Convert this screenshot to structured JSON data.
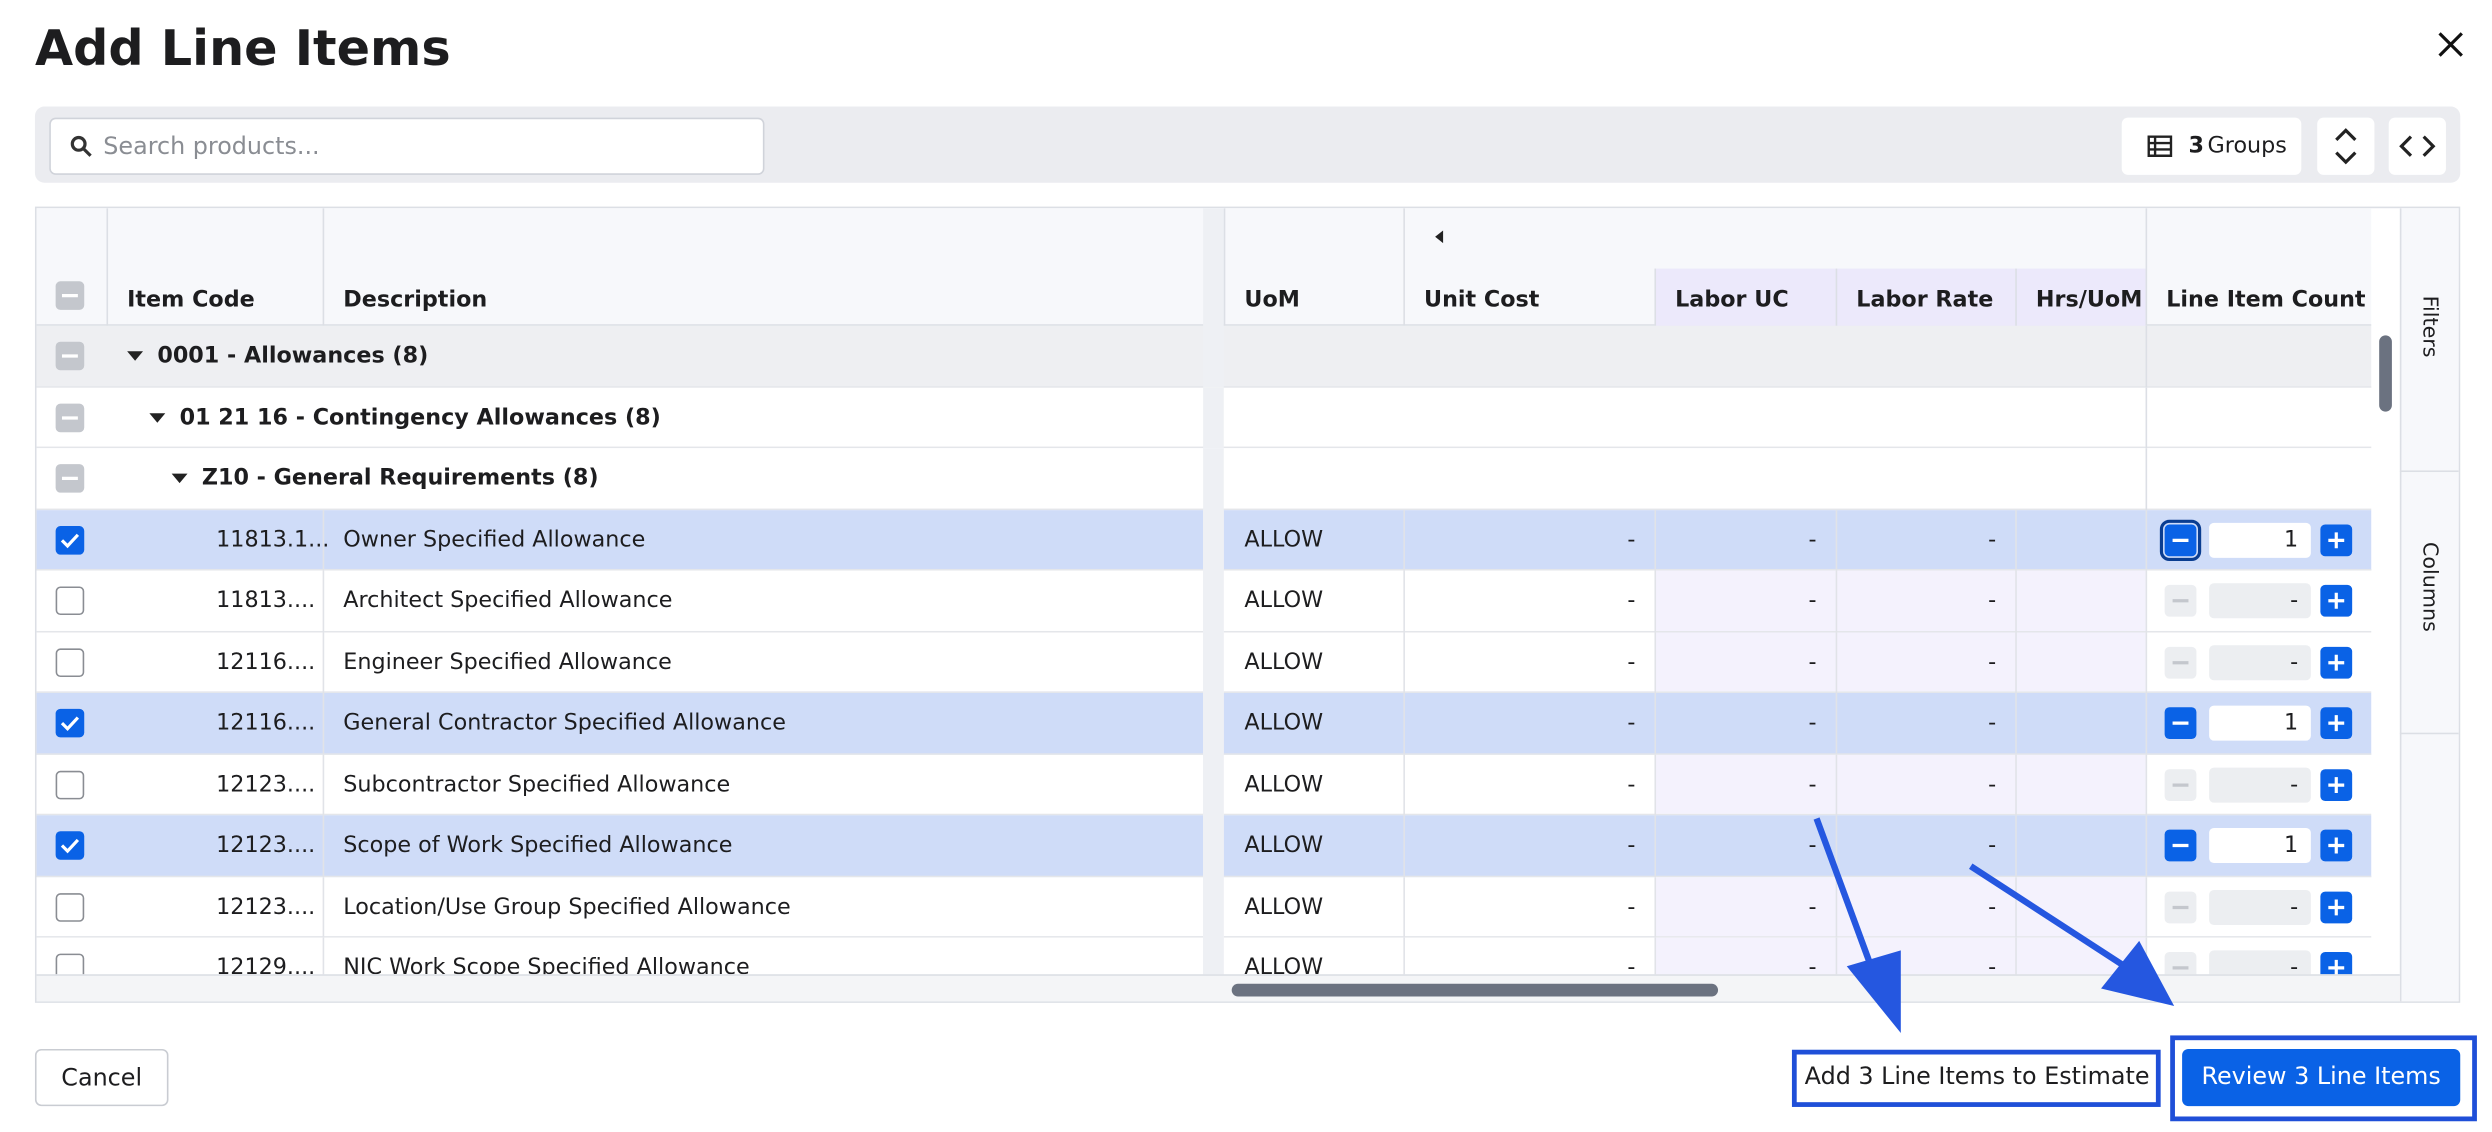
{
  "header": {
    "title": "Add Line Items"
  },
  "toolbar": {
    "search_placeholder": "Search products...",
    "groups_count": "3",
    "groups_label": "Groups"
  },
  "table": {
    "columns": [
      "Item Code",
      "Description",
      "UoM",
      "Unit Cost",
      "Labor UC",
      "Labor Rate",
      "Hrs/UoM",
      "Line Item Count"
    ],
    "groups": [
      {
        "label": "0001 - Allowances (8)",
        "level": 0
      },
      {
        "label": "01 21 16 - Contingency Allowances (8)",
        "level": 1
      },
      {
        "label": "Z10 - General Requirements (8)",
        "level": 2
      }
    ],
    "rows": [
      {
        "code": "11813.1...",
        "description": "Owner Specified Allowance",
        "uom": "ALLOW",
        "unit_cost": "-",
        "labor_uc": "-",
        "labor_rate": "-",
        "count": "1",
        "checked": true
      },
      {
        "code": "11813....",
        "description": "Architect Specified Allowance",
        "uom": "ALLOW",
        "unit_cost": "-",
        "labor_uc": "-",
        "labor_rate": "-",
        "count": "-",
        "checked": false
      },
      {
        "code": "12116....",
        "description": "Engineer Specified Allowance",
        "uom": "ALLOW",
        "unit_cost": "-",
        "labor_uc": "-",
        "labor_rate": "-",
        "count": "-",
        "checked": false
      },
      {
        "code": "12116....",
        "description": "General Contractor Specified Allowance",
        "uom": "ALLOW",
        "unit_cost": "-",
        "labor_uc": "-",
        "labor_rate": "-",
        "count": "1",
        "checked": true
      },
      {
        "code": "12123....",
        "description": "Subcontractor Specified Allowance",
        "uom": "ALLOW",
        "unit_cost": "-",
        "labor_uc": "-",
        "labor_rate": "-",
        "count": "-",
        "checked": false
      },
      {
        "code": "12123....",
        "description": "Scope of Work Specified Allowance",
        "uom": "ALLOW",
        "unit_cost": "-",
        "labor_uc": "-",
        "labor_rate": "-",
        "count": "1",
        "checked": true
      },
      {
        "code": "12123....",
        "description": "Location/Use Group Specified Allowance",
        "uom": "ALLOW",
        "unit_cost": "-",
        "labor_uc": "-",
        "labor_rate": "-",
        "count": "-",
        "checked": false
      },
      {
        "code": "12129....",
        "description": "NIC Work Scope Specified Allowance",
        "uom": "ALLOW",
        "unit_cost": "-",
        "labor_uc": "-",
        "labor_rate": "-",
        "count": "-",
        "checked": false
      }
    ]
  },
  "side_panel": [
    "Filters",
    "Columns"
  ],
  "footer": {
    "cancel": "Cancel",
    "add": "Add 3 Line Items to Estimate",
    "review": "Review 3 Line Items"
  }
}
